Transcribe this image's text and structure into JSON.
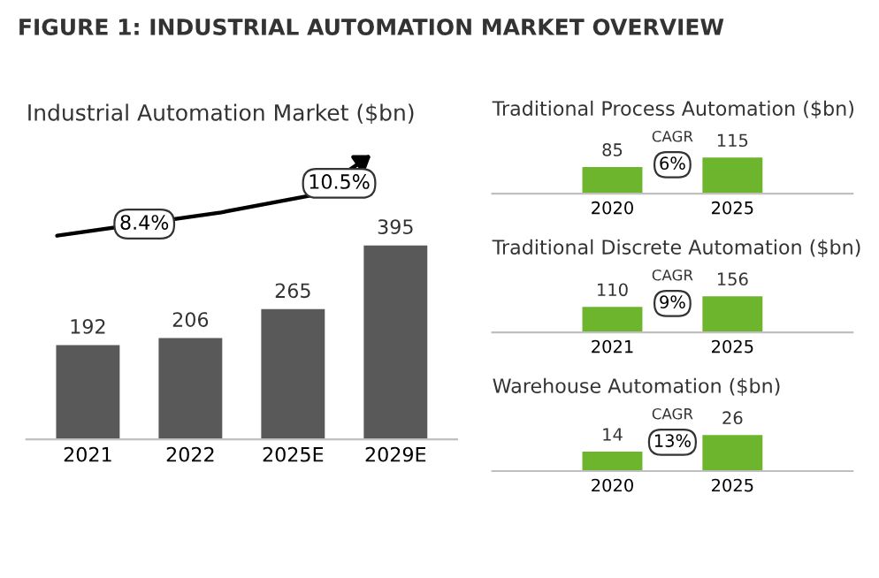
{
  "chart_data": [
    {
      "type": "bar",
      "title": "FIGURE 1: INDUSTRIAL AUTOMATION MARKET OVERVIEW",
      "subtitle": "Industrial Automation Market ($bn)",
      "categories": [
        "2021",
        "2022",
        "2025E",
        "2029E"
      ],
      "values": [
        192,
        206,
        265,
        395
      ],
      "color": "#595959",
      "data_labels": true,
      "annotations": [
        "8.4%",
        "10.5%"
      ]
    },
    {
      "type": "bar",
      "title": "Traditional Process Automation ($bn)",
      "categories": [
        "2020",
        "2025"
      ],
      "values": [
        85,
        115
      ],
      "color": "#6cb52d",
      "data_labels": true,
      "annotations": [
        "CAGR",
        "6%"
      ]
    },
    {
      "type": "bar",
      "title": "Traditional Discrete Automation ($bn)",
      "categories": [
        "2021",
        "2025"
      ],
      "values": [
        110,
        156
      ],
      "color": "#6cb52d",
      "data_labels": true,
      "annotations": [
        "CAGR",
        "9%"
      ]
    },
    {
      "type": "bar",
      "title": "Warehouse Automation ($bn)",
      "categories": [
        "2020",
        "2025"
      ],
      "values": [
        14,
        26
      ],
      "color": "#6cb52d",
      "data_labels": true,
      "annotations": [
        "CAGR",
        "13%"
      ]
    }
  ]
}
